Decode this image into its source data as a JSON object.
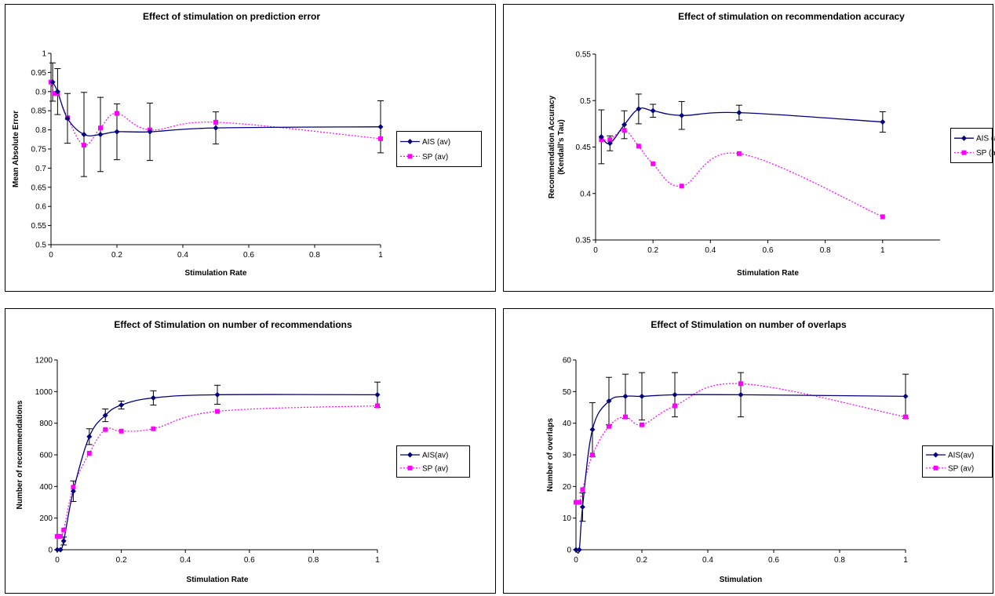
{
  "colors": {
    "ais": "#000080",
    "sp": "#ff00ff"
  },
  "chart_data": [
    {
      "type": "line",
      "title": "Effect of stimulation on prediction error",
      "xlabel": "Stimulation Rate",
      "ylabel": "Mean Absolute Error",
      "ylabel2": "",
      "xlim": [
        0,
        1
      ],
      "ylim": [
        0.5,
        1
      ],
      "xticks": [
        "0",
        "0.2",
        "0.4",
        "0.6",
        "0.8",
        "1"
      ],
      "yticks": [
        "0.5",
        "0.55",
        "0.6",
        "0.65",
        "0.7",
        "0.75",
        "0.8",
        "0.85",
        "0.9",
        "0.95",
        "1"
      ],
      "legend": "right",
      "series": [
        {
          "name": "AIS (av)",
          "x": [
            0.005,
            0.02,
            0.05,
            0.1,
            0.15,
            0.2,
            0.3,
            0.5,
            1
          ],
          "y": [
            0.925,
            0.9,
            0.83,
            0.788,
            0.788,
            0.795,
            0.795,
            0.805,
            0.808
          ],
          "err": [
            0.05,
            0.06,
            0.065,
            0.11,
            0.097,
            0.073,
            0.075,
            0.042,
            0.068
          ]
        },
        {
          "name": "SP (av)",
          "x": [
            0,
            0.01,
            0.02,
            0.05,
            0.1,
            0.15,
            0.2,
            0.3,
            0.5,
            1
          ],
          "y": [
            0.925,
            0.895,
            0.895,
            0.832,
            0.76,
            0.805,
            0.843,
            0.8,
            0.82,
            0.777
          ]
        }
      ]
    },
    {
      "type": "line",
      "title": "Effect of stimulation on recommendation accuracy",
      "xlabel": "Stimulation Rate",
      "ylabel": "Recommendation Accuracy",
      "ylabel2": "(Kendall's Tau)",
      "xlim": [
        0,
        1.2
      ],
      "ylim": [
        0.35,
        0.55
      ],
      "xticks": [
        "0",
        "0.2",
        "0.4",
        "0.6",
        "0.8",
        "1"
      ],
      "yticks": [
        "0.35",
        "0.4",
        "0.45",
        "0.5",
        "0.55"
      ],
      "legend": "right",
      "series": [
        {
          "name": "AIS (av)",
          "x": [
            0.02,
            0.05,
            0.1,
            0.15,
            0.2,
            0.3,
            0.5,
            1
          ],
          "y": [
            0.461,
            0.454,
            0.474,
            0.491,
            0.489,
            0.484,
            0.487,
            0.477
          ],
          "err": [
            0.029,
            0.008,
            0.015,
            0.016,
            0.007,
            0.015,
            0.008,
            0.011
          ]
        },
        {
          "name": "SP (av)",
          "x": [
            0.02,
            0.05,
            0.1,
            0.15,
            0.2,
            0.3,
            0.5,
            1
          ],
          "y": [
            0.458,
            0.458,
            0.468,
            0.451,
            0.432,
            0.408,
            0.443,
            0.375
          ]
        }
      ]
    },
    {
      "type": "line",
      "title": "Effect of Stimulation on number of recommendations",
      "xlabel": "Stimulation Rate",
      "ylabel": "Number of recommendations",
      "ylabel2": "",
      "xlim": [
        0,
        1
      ],
      "ylim": [
        0,
        1200
      ],
      "xticks": [
        "0",
        "0.2",
        "0.4",
        "0.6",
        "0.8",
        "1"
      ],
      "yticks": [
        "0",
        "200",
        "400",
        "600",
        "800",
        "1000",
        "1200"
      ],
      "legend": "right",
      "series": [
        {
          "name": "AIS(av)",
          "x": [
            0,
            0.01,
            0.02,
            0.05,
            0.1,
            0.15,
            0.2,
            0.3,
            0.5,
            1
          ],
          "y": [
            0,
            0,
            55,
            370,
            715,
            850,
            915,
            960,
            980,
            980
          ],
          "err": [
            0,
            0,
            25,
            65,
            50,
            40,
            25,
            45,
            60,
            80
          ]
        },
        {
          "name": "SP (av)",
          "x": [
            0,
            0.01,
            0.02,
            0.05,
            0.1,
            0.15,
            0.2,
            0.3,
            0.5,
            1
          ],
          "y": [
            85,
            85,
            125,
            395,
            610,
            760,
            750,
            765,
            875,
            910
          ]
        }
      ]
    },
    {
      "type": "line",
      "title": "Effect of Stimulation on number of overlaps",
      "xlabel": "Stimulation",
      "ylabel": "Number of overlaps",
      "ylabel2": "",
      "xlim": [
        0,
        1
      ],
      "ylim": [
        0,
        60
      ],
      "xticks": [
        "0",
        "0.2",
        "0.4",
        "0.6",
        "0.8",
        "1"
      ],
      "yticks": [
        "0",
        "10",
        "20",
        "30",
        "40",
        "50",
        "60"
      ],
      "legend": "right",
      "series": [
        {
          "name": "AIS(av)",
          "x": [
            0,
            0.01,
            0.02,
            0.05,
            0.1,
            0.15,
            0.2,
            0.3,
            0.5,
            1
          ],
          "y": [
            0,
            0,
            13.5,
            38,
            47,
            48.5,
            48.5,
            49,
            49,
            48.5
          ],
          "err": [
            0,
            0,
            4.5,
            8.5,
            7.5,
            7,
            7.5,
            7,
            7,
            7
          ]
        },
        {
          "name": "SP (av)",
          "x": [
            0,
            0.01,
            0.02,
            0.05,
            0.1,
            0.15,
            0.2,
            0.3,
            0.5,
            1
          ],
          "y": [
            15,
            15,
            19,
            30,
            39,
            42,
            39.5,
            45.5,
            52.5,
            42
          ]
        }
      ]
    }
  ]
}
